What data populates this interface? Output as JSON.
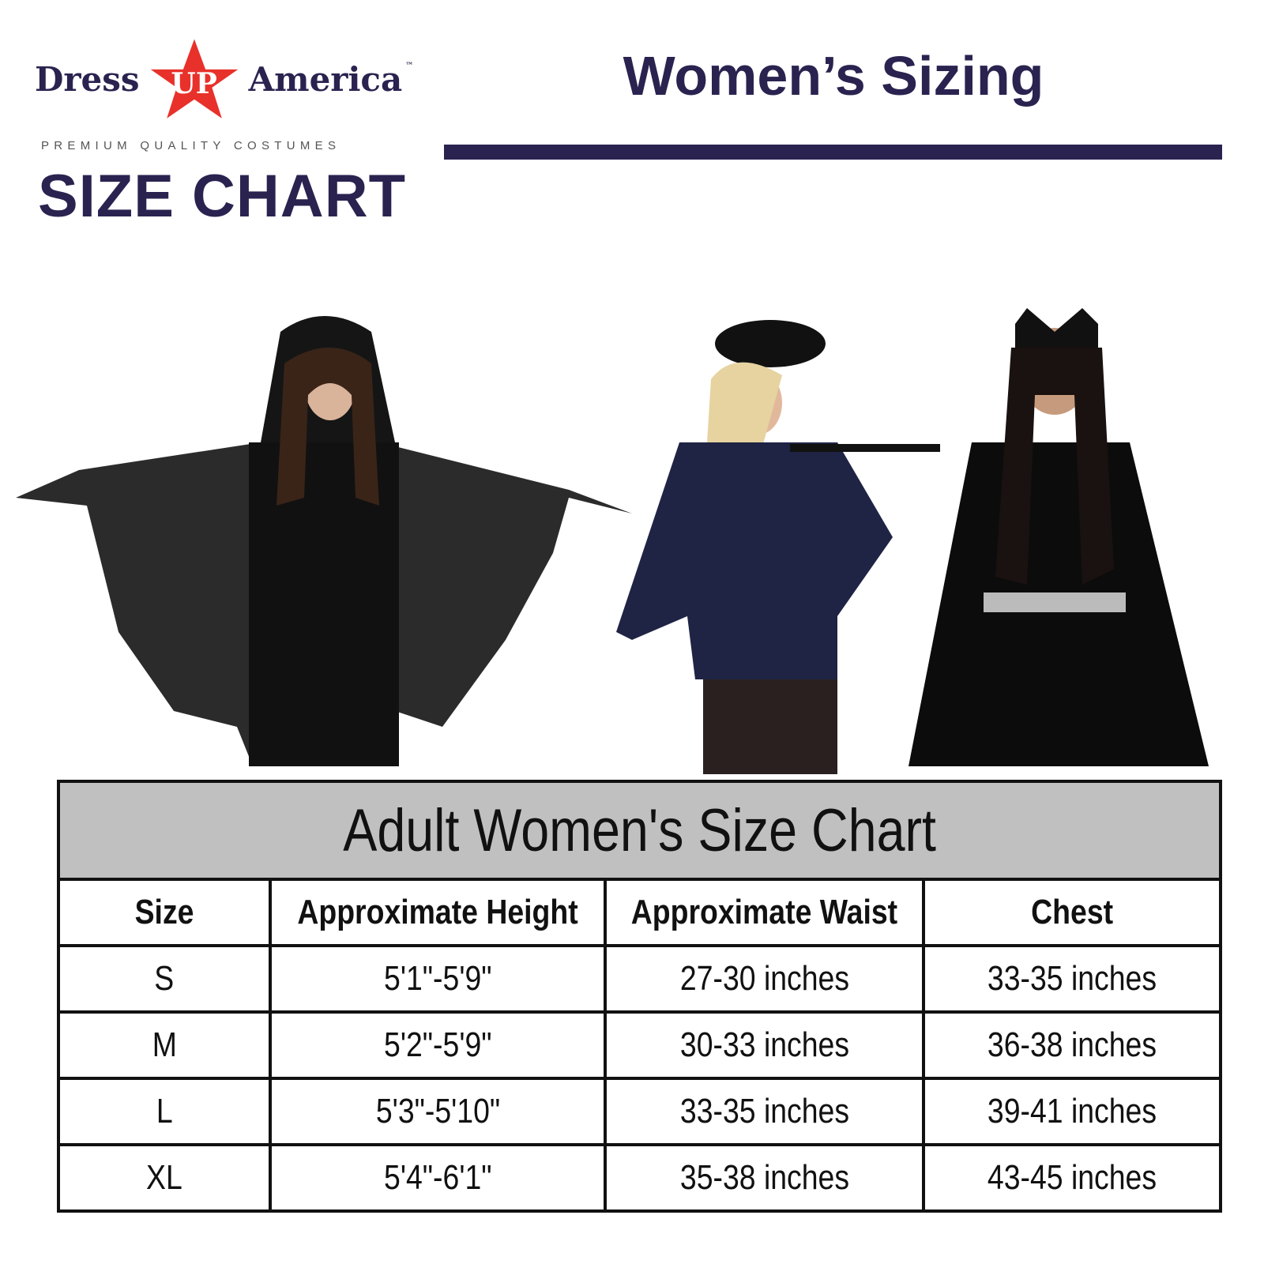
{
  "brand": {
    "logo_text": "Dress UP America",
    "logo_left": "Dress",
    "logo_star": "UP",
    "logo_right": "America",
    "trademark": "™",
    "tagline": "PREMIUM QUALITY COSTUMES",
    "heading": "SIZE CHART",
    "star_color": "#e8312a",
    "text_color": "#2a2350"
  },
  "header": {
    "title": "Women’s Sizing",
    "bar_color": "#2a2350"
  },
  "photos": [
    "bat costume model",
    "police costume model",
    "cat costume model"
  ],
  "table": {
    "caption": "Adult Women's Size Chart",
    "columns": [
      "Size",
      "Approximate Height",
      "Approximate Waist",
      "Chest"
    ],
    "rows": [
      [
        "S",
        "5'1\"-5'9\"",
        "27-30 inches",
        "33-35 inches"
      ],
      [
        "M",
        "5'2\"-5'9\"",
        "30-33 inches",
        "36-38 inches"
      ],
      [
        "L",
        "5'3\"-5'10\"",
        "33-35 inches",
        "39-41 inches"
      ],
      [
        "XL",
        "5'4\"-6'1\"",
        "35-38 inches",
        "43-45 inches"
      ]
    ],
    "caption_bg": "#c0c0c0"
  }
}
